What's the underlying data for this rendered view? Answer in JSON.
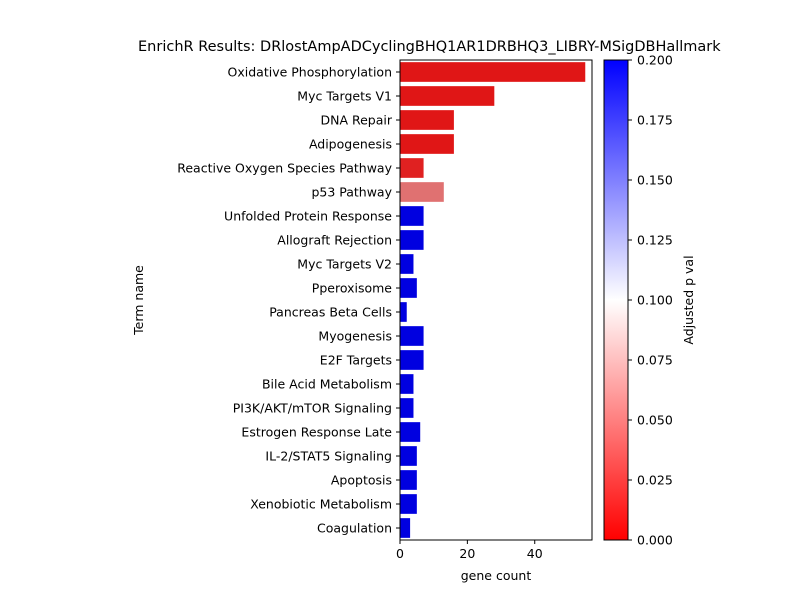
{
  "chart_data": {
    "type": "bar",
    "orientation": "horizontal",
    "title": "EnrichR Results: DRlostAmpADCyclingBHQ1AR1DRBHQ3_LIBRY-MSigDBHallmark",
    "xlabel": "gene count",
    "ylabel": "Term name",
    "xlim": [
      0,
      57
    ],
    "x_ticks": [
      "0",
      "20",
      "40"
    ],
    "categories": [
      "Oxidative Phosphorylation",
      "Myc Targets V1",
      "DNA Repair",
      "Adipogenesis",
      "Reactive Oxygen Species Pathway",
      "p53 Pathway",
      "Unfolded Protein Response",
      "Allograft Rejection",
      "Myc Targets V2",
      "Pperoxisome",
      "Pancreas Beta Cells",
      "Myogenesis",
      "E2F Targets",
      "Bile Acid Metabolism",
      "PI3K/AKT/mTOR  Signaling",
      "Estrogen Response Late",
      "IL-2/STAT5 Signaling",
      "Apoptosis",
      "Xenobiotic Metabolism",
      "Coagulation"
    ],
    "values": [
      55,
      28,
      16,
      16,
      7,
      13,
      7,
      7,
      4,
      5,
      2,
      7,
      7,
      4,
      4,
      6,
      5,
      5,
      5,
      3
    ],
    "adjusted_p": [
      0.01,
      0.01,
      0.01,
      0.01,
      0.015,
      0.05,
      0.2,
      0.2,
      0.2,
      0.2,
      0.2,
      0.2,
      0.2,
      0.2,
      0.2,
      0.2,
      0.2,
      0.2,
      0.2,
      0.2
    ],
    "colorbar": {
      "label": "Adjusted p val",
      "range": [
        0,
        0.2
      ],
      "ticks": [
        "0.000",
        "0.025",
        "0.050",
        "0.075",
        "0.100",
        "0.125",
        "0.150",
        "0.175",
        "0.200"
      ],
      "colors": [
        "#ff0000",
        "#ffffff",
        "#0000ff"
      ]
    },
    "grid": false,
    "legend": "none"
  }
}
